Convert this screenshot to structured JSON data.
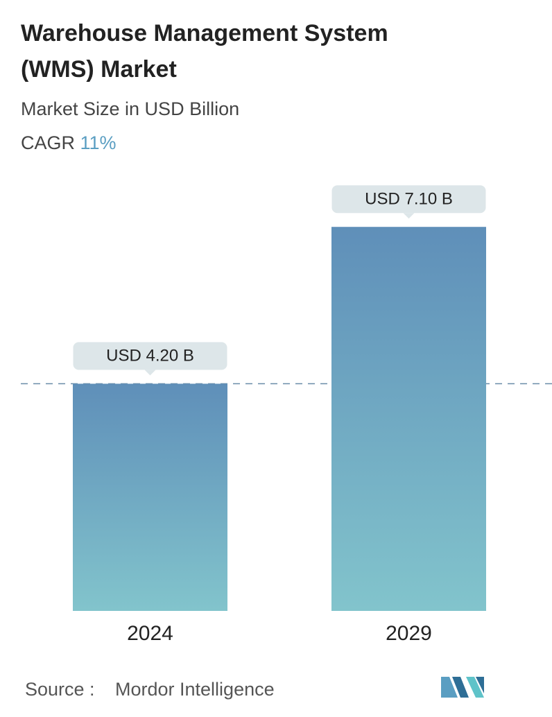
{
  "chart_data": {
    "type": "bar",
    "title": "Warehouse Management System (WMS) Market",
    "subtitle": "Market Size in USD Billion",
    "cagr_label": "CAGR",
    "cagr_value": "11%",
    "categories": [
      "2024",
      "2029"
    ],
    "values": [
      4.2,
      7.1
    ],
    "value_labels": [
      "USD 4.20 B",
      "USD 7.10 B"
    ],
    "gradient": [
      "#5f8fb9",
      "#82c4cc"
    ],
    "reference_line": true,
    "source_label": "Source :",
    "source": "Mordor Intelligence"
  }
}
